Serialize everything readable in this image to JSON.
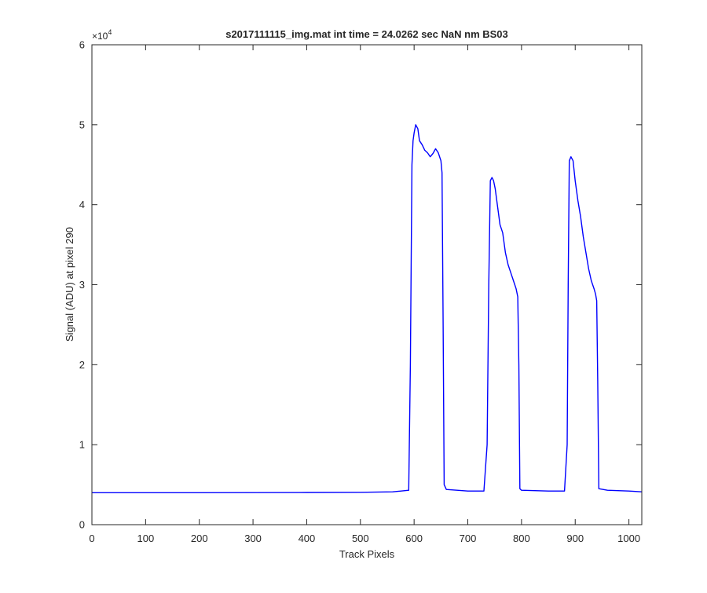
{
  "chart_data": {
    "type": "line",
    "title": "s2017111115_img.mat int time = 24.0262 sec  NaN nm BS03",
    "xlabel": "Track Pixels",
    "ylabel": "Signal (ADU) at pixel 290",
    "xlim": [
      0,
      1024
    ],
    "ylim": [
      0,
      60000
    ],
    "x_ticks": [
      0,
      100,
      200,
      300,
      400,
      500,
      600,
      700,
      800,
      900,
      1000
    ],
    "x_tick_labels": [
      "0",
      "100",
      "200",
      "300",
      "400",
      "500",
      "600",
      "700",
      "800",
      "900",
      "1000"
    ],
    "y_ticks": [
      0,
      10000,
      20000,
      30000,
      40000,
      50000,
      60000
    ],
    "y_tick_labels": [
      "0",
      "1",
      "2",
      "3",
      "4",
      "5",
      "6"
    ],
    "y_exponent_label": "×10",
    "y_exponent_power": "4",
    "grid": false,
    "line_color": "#0000ff",
    "series": [
      {
        "x": [
          0,
          100,
          200,
          300,
          400,
          500,
          560,
          590,
          593,
          596,
          598,
          600,
          603,
          607,
          610,
          615,
          620,
          625,
          630,
          635,
          640,
          645,
          650,
          652,
          654,
          656,
          660,
          700,
          730,
          736,
          739,
          742,
          745,
          748,
          751,
          755,
          760,
          765,
          770,
          775,
          780,
          785,
          790,
          793,
          795,
          797,
          800,
          850,
          880,
          885,
          887,
          889,
          892,
          896,
          900,
          905,
          910,
          915,
          920,
          925,
          930,
          935,
          938,
          940,
          942,
          944,
          960,
          1000,
          1024
        ],
        "y": [
          4000,
          4000,
          4000,
          4010,
          4030,
          4050,
          4100,
          4300,
          20000,
          45000,
          48000,
          49000,
          50000,
          49500,
          48000,
          47500,
          46800,
          46500,
          46000,
          46400,
          47000,
          46500,
          45500,
          44000,
          25000,
          5000,
          4400,
          4200,
          4200,
          10000,
          30000,
          43000,
          43400,
          43000,
          42000,
          40000,
          37500,
          36500,
          34000,
          32500,
          31500,
          30500,
          29500,
          28500,
          20000,
          4500,
          4300,
          4200,
          4200,
          10000,
          30000,
          45500,
          46000,
          45500,
          43000,
          40500,
          38500,
          36000,
          34000,
          32000,
          30500,
          29500,
          28800,
          28000,
          18000,
          4500,
          4300,
          4200,
          4100
        ]
      }
    ]
  }
}
